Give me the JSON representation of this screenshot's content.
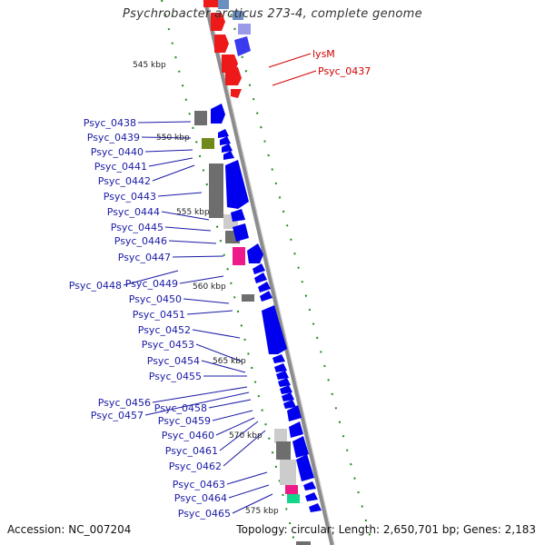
{
  "title": "Psychrobacter arcticus 273-4, complete genome",
  "accession": "Accession: NC_007204",
  "summary": "Topology: circular; Length: 2,650,701 bp; Genes: 2,183",
  "colors": {
    "backbone": "#8c8c8c",
    "forward_cds": "#0000ee",
    "rna_gene": "#6e6e6e",
    "highlight_label": "#d40000",
    "label": "#1a1aa6",
    "ruler_tick": "#1f8a1f",
    "magenta": "#ee1a8a",
    "olive": "#6f8a1a",
    "teal": "#14d68a"
  },
  "kbp_labels": [
    "545 kbp",
    "550 kbp",
    "555 kbp",
    "560 kbp",
    "565 kbp",
    "570 kbp",
    "575 kbp"
  ],
  "red_labels": [
    "lysM",
    "Psyc_0437"
  ],
  "labels": [
    "Psyc_0438",
    "Psyc_0439",
    "Psyc_0440",
    "Psyc_0441",
    "Psyc_0442",
    "Psyc_0443",
    "Psyc_0444",
    "Psyc_0445",
    "Psyc_0446",
    "Psyc_0447",
    "Psyc_0448",
    "Psyc_0449",
    "Psyc_0450",
    "Psyc_0451",
    "Psyc_0452",
    "Psyc_0453",
    "Psyc_0454",
    "Psyc_0455",
    "Psyc_0456",
    "Psyc_0457",
    "Psyc_0458",
    "Psyc_0459",
    "Psyc_0460",
    "Psyc_0461",
    "Psyc_0462",
    "Psyc_0463",
    "Psyc_0464",
    "Psyc_0465"
  ]
}
